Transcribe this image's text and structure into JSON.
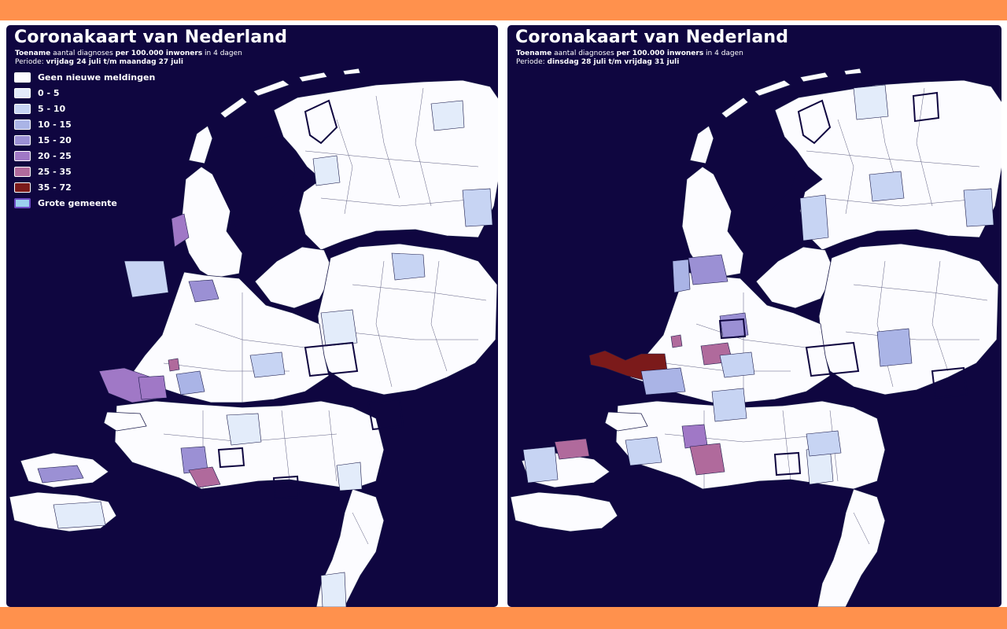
{
  "colors": {
    "frame": "#ff914d",
    "background": "#0f0640",
    "none": "#fcfcff",
    "c0_5": "#e3ecfa",
    "c5_10": "#c7d4f3",
    "c10_15": "#aab4e6",
    "c15_20": "#9b90d4",
    "c20_25": "#a078c6",
    "c25_35": "#b06a9c",
    "c35_72": "#7b1a1a",
    "big": "#9bd0ee"
  },
  "legend": [
    {
      "label": "Geen nieuwe meldingen",
      "color": "#fcfcff"
    },
    {
      "label": "0 - 5",
      "color": "#e3ecfa"
    },
    {
      "label": "5 - 10",
      "color": "#c7d4f3"
    },
    {
      "label": "10 - 15",
      "color": "#aab4e6"
    },
    {
      "label": "15 - 20",
      "color": "#9b90d4"
    },
    {
      "label": "20 - 25",
      "color": "#a078c6"
    },
    {
      "label": "25 - 35",
      "color": "#b06a9c"
    },
    {
      "label": "35 - 72",
      "color": "#7b1a1a"
    },
    {
      "label": "Grote gemeente",
      "color": "#9bd0ee"
    }
  ],
  "maps": [
    {
      "title": "Coronakaart van Nederland",
      "subtitle_bold_1": "Toename",
      "subtitle_mid": " aantal diagnoses ",
      "subtitle_bold_2": "per 100.000 inwoners",
      "subtitle_end": " in 4 dagen",
      "period_label": "Periode: ",
      "period_value": "vrijdag 24 juli t/m maandag 27 juli"
    },
    {
      "title": "Coronakaart van Nederland",
      "subtitle_bold_1": "Toename",
      "subtitle_mid": " aantal diagnoses ",
      "subtitle_bold_2": "per 100.000 inwoners",
      "subtitle_end": " in 4 dagen",
      "period_label": "Periode: ",
      "period_value": "dinsdag 28 juli t/m vrijdag 31 juli"
    }
  ]
}
